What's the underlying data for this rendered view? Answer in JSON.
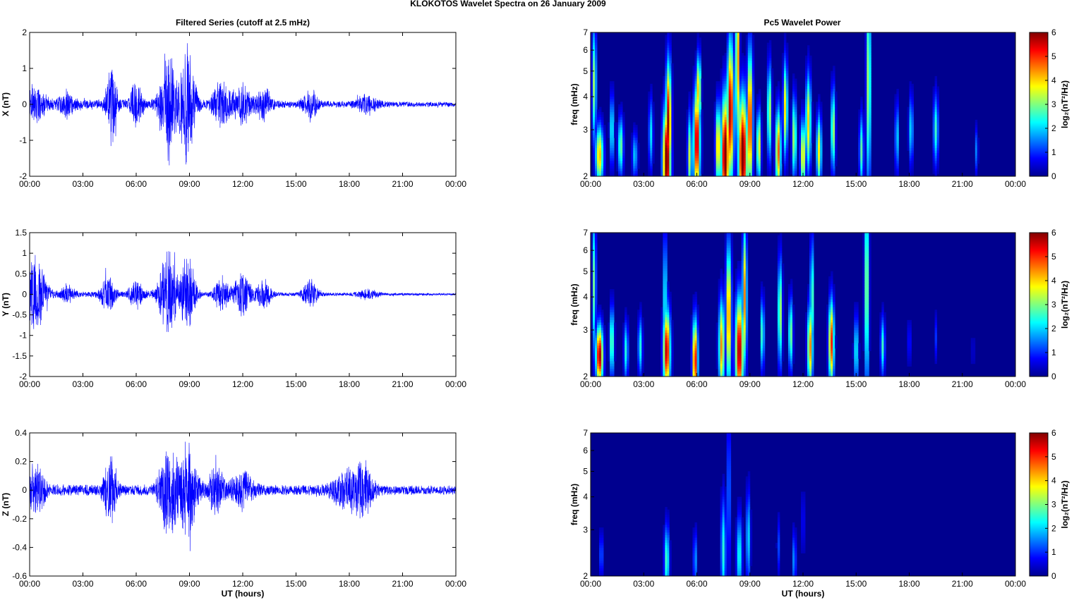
{
  "figure_title": "KLOKOTOS Wavelet Spectra on 26 January   2009",
  "left_title": "Filtered Series (cutoff at 2.5 mHz)",
  "right_title": "Pc5 Wavelet Power",
  "x_tick_labels": [
    "00:00",
    "03:00",
    "06:00",
    "09:00",
    "12:00",
    "15:00",
    "18:00",
    "21:00",
    "00:00"
  ],
  "x_axis_label": "UT (hours)",
  "colors": {
    "series_line": "#0000ff",
    "spectrum_background": "#00008f"
  },
  "chart_data": [
    {
      "type": "line",
      "title": "Filtered Series (cutoff at 2.5 mHz)",
      "ylabel": "X (nT)",
      "xlabel": "",
      "xlim": [
        0,
        24
      ],
      "ylim": [
        -2,
        2
      ],
      "y_ticks": [
        -2,
        -1,
        0,
        1,
        2
      ],
      "grid": false,
      "series": [
        {
          "noise_level": 0.13,
          "decay": 0.55,
          "bursts": [
            [
              0.3,
              0.6,
              0.35
            ],
            [
              2.1,
              0.4,
              0.25
            ],
            [
              4.6,
              0.3,
              0.9
            ],
            [
              6.0,
              0.3,
              0.55
            ],
            [
              7.8,
              0.45,
              1.4
            ],
            [
              8.9,
              0.4,
              1.5
            ],
            [
              10.8,
              0.5,
              0.55
            ],
            [
              12.0,
              0.5,
              0.45
            ],
            [
              13.2,
              0.4,
              0.4
            ],
            [
              15.8,
              0.4,
              0.35
            ],
            [
              19.0,
              0.6,
              0.2
            ]
          ]
        }
      ]
    },
    {
      "type": "line",
      "ylabel": "Y (nT)",
      "xlabel": "",
      "xlim": [
        0,
        24
      ],
      "ylim": [
        -2,
        1.5
      ],
      "y_ticks": [
        -2,
        -1.5,
        -1,
        -0.5,
        0,
        0.5,
        1,
        1.5
      ],
      "grid": false,
      "series": [
        {
          "noise_level": 0.06,
          "decay": 0.6,
          "bursts": [
            [
              0.3,
              0.6,
              0.8
            ],
            [
              2.1,
              0.4,
              0.18
            ],
            [
              4.4,
              0.4,
              0.4
            ],
            [
              6.0,
              0.4,
              0.3
            ],
            [
              7.8,
              0.5,
              0.9
            ],
            [
              8.9,
              0.4,
              0.95
            ],
            [
              10.8,
              0.4,
              0.35
            ],
            [
              12.0,
              0.5,
              0.45
            ],
            [
              13.2,
              0.4,
              0.3
            ],
            [
              15.8,
              0.4,
              0.3
            ],
            [
              19.0,
              0.6,
              0.1
            ]
          ]
        }
      ]
    },
    {
      "type": "line",
      "ylabel": "Z (nT)",
      "xlabel": "UT (hours)",
      "xlim": [
        0,
        24
      ],
      "ylim": [
        -0.6,
        0.4
      ],
      "y_ticks": [
        -0.6,
        -0.4,
        -0.2,
        0,
        0.2,
        0.4
      ],
      "grid": false,
      "series": [
        {
          "noise_level": 0.035,
          "decay": 0.2,
          "bursts": [
            [
              0.3,
              0.5,
              0.15
            ],
            [
              4.5,
              0.35,
              0.2
            ],
            [
              7.8,
              0.5,
              0.28
            ],
            [
              8.9,
              0.5,
              0.28
            ],
            [
              10.5,
              0.5,
              0.12
            ],
            [
              12.0,
              0.6,
              0.1
            ],
            [
              17.8,
              0.8,
              0.1
            ],
            [
              18.8,
              0.6,
              0.12
            ]
          ]
        }
      ]
    },
    {
      "type": "heatmap",
      "title": "Pc5 Wavelet Power",
      "ylabel": "freq (mHz)",
      "xlabel": "",
      "colorbar_label": "log₂(nT²/Hz)",
      "xlim": [
        0,
        24
      ],
      "ylim": [
        2,
        7
      ],
      "y_scale": "log",
      "y_ticks": [
        2,
        3,
        4,
        5,
        6,
        7
      ],
      "clim": [
        0,
        6
      ],
      "colorbar_ticks": [
        0,
        1,
        2,
        3,
        4,
        5,
        6
      ],
      "blobs": [
        [
          0.5,
          2.4,
          0.22,
          0.25,
          4.2
        ],
        [
          0.2,
          4.5,
          0.12,
          0.5,
          3.2
        ],
        [
          1.2,
          3.0,
          0.12,
          0.3,
          2.5
        ],
        [
          1.7,
          2.6,
          0.15,
          0.25,
          3.0
        ],
        [
          2.5,
          2.4,
          0.15,
          0.2,
          2.0
        ],
        [
          3.4,
          2.9,
          0.12,
          0.3,
          2.2
        ],
        [
          4.3,
          2.3,
          0.22,
          0.45,
          6.5
        ],
        [
          4.4,
          3.2,
          0.15,
          0.5,
          6.0
        ],
        [
          5.6,
          2.4,
          0.12,
          0.35,
          3.5
        ],
        [
          6.0,
          2.7,
          0.18,
          0.45,
          6.0
        ],
        [
          6.1,
          4.2,
          0.12,
          0.3,
          4.5
        ],
        [
          7.2,
          2.6,
          0.14,
          0.35,
          4.5
        ],
        [
          7.6,
          2.4,
          0.22,
          0.5,
          6.5
        ],
        [
          7.9,
          3.5,
          0.18,
          0.6,
          6.0
        ],
        [
          8.3,
          5.5,
          0.1,
          0.8,
          5.0
        ],
        [
          8.6,
          2.4,
          0.25,
          0.5,
          6.5
        ],
        [
          9.0,
          3.2,
          0.15,
          0.6,
          5.5
        ],
        [
          9.5,
          2.6,
          0.12,
          0.3,
          4.0
        ],
        [
          10.1,
          3.5,
          0.12,
          0.4,
          3.5
        ],
        [
          10.6,
          2.5,
          0.15,
          0.35,
          4.8
        ],
        [
          11.0,
          3.6,
          0.12,
          0.4,
          4.0
        ],
        [
          11.5,
          2.8,
          0.12,
          0.35,
          3.5
        ],
        [
          12.0,
          2.4,
          0.15,
          0.3,
          4.0
        ],
        [
          12.3,
          3.2,
          0.15,
          0.4,
          4.0
        ],
        [
          12.9,
          2.5,
          0.14,
          0.3,
          3.8
        ],
        [
          13.7,
          3.0,
          0.12,
          0.35,
          3.5
        ],
        [
          15.3,
          2.5,
          0.12,
          0.3,
          2.8
        ],
        [
          15.7,
          4.5,
          0.12,
          0.9,
          3.5
        ],
        [
          17.3,
          2.8,
          0.1,
          0.3,
          2.2
        ],
        [
          18.1,
          3.0,
          0.12,
          0.3,
          2.2
        ],
        [
          19.5,
          3.0,
          0.14,
          0.3,
          2.6
        ],
        [
          21.8,
          2.5,
          0.08,
          0.2,
          1.6
        ]
      ]
    },
    {
      "type": "heatmap",
      "ylabel": "freq (mHz)",
      "xlabel": "",
      "colorbar_label": "log₂(nT²/Hz)",
      "xlim": [
        0,
        24
      ],
      "ylim": [
        2,
        7
      ],
      "y_scale": "log",
      "y_ticks": [
        2,
        3,
        4,
        5,
        6,
        7
      ],
      "clim": [
        0,
        6
      ],
      "colorbar_ticks": [
        0,
        1,
        2,
        3,
        4,
        5,
        6
      ],
      "blobs": [
        [
          0.5,
          2.4,
          0.2,
          0.25,
          6.0
        ],
        [
          0.2,
          4.5,
          0.1,
          0.6,
          3.0
        ],
        [
          1.2,
          2.7,
          0.12,
          0.3,
          3.2
        ],
        [
          2.0,
          2.5,
          0.12,
          0.25,
          2.5
        ],
        [
          2.8,
          2.6,
          0.12,
          0.25,
          2.5
        ],
        [
          4.3,
          2.5,
          0.2,
          0.35,
          5.8
        ],
        [
          4.2,
          3.8,
          0.1,
          0.6,
          2.8
        ],
        [
          5.9,
          2.3,
          0.15,
          0.35,
          5.5
        ],
        [
          7.4,
          2.6,
          0.16,
          0.4,
          4.5
        ],
        [
          7.8,
          3.4,
          0.15,
          0.6,
          4.8
        ],
        [
          8.4,
          2.5,
          0.22,
          0.45,
          6.0
        ],
        [
          8.7,
          4.0,
          0.12,
          0.6,
          4.5
        ],
        [
          9.7,
          2.9,
          0.1,
          0.3,
          3.0
        ],
        [
          10.7,
          3.5,
          0.12,
          0.45,
          3.5
        ],
        [
          11.3,
          2.9,
          0.12,
          0.3,
          3.2
        ],
        [
          12.4,
          2.6,
          0.15,
          0.35,
          4.5
        ],
        [
          12.5,
          4.0,
          0.1,
          0.5,
          3.0
        ],
        [
          13.6,
          2.7,
          0.15,
          0.35,
          5.2
        ],
        [
          15.0,
          2.5,
          0.12,
          0.3,
          2.5
        ],
        [
          15.6,
          4.4,
          0.12,
          0.9,
          3.5
        ],
        [
          16.5,
          2.6,
          0.12,
          0.25,
          2.6
        ],
        [
          18.0,
          2.7,
          0.08,
          0.2,
          1.2
        ],
        [
          19.5,
          2.8,
          0.08,
          0.2,
          1.0
        ],
        [
          21.6,
          2.5,
          0.06,
          0.2,
          0.9
        ]
      ]
    },
    {
      "type": "heatmap",
      "ylabel": "freq (mHz)",
      "xlabel": "UT (hours)",
      "colorbar_label": "log₂(nT²/Hz)",
      "xlim": [
        0,
        24
      ],
      "ylim": [
        2,
        7
      ],
      "y_scale": "log",
      "y_ticks": [
        2,
        3,
        4,
        5,
        6,
        7
      ],
      "clim": [
        0,
        6
      ],
      "colorbar_ticks": [
        0,
        1,
        2,
        3,
        4,
        5,
        6
      ],
      "blobs": [
        [
          0.6,
          2.4,
          0.1,
          0.2,
          1.5
        ],
        [
          4.3,
          2.3,
          0.14,
          0.3,
          2.8
        ],
        [
          5.9,
          2.3,
          0.1,
          0.25,
          1.8
        ],
        [
          7.5,
          2.5,
          0.14,
          0.45,
          2.5
        ],
        [
          7.8,
          4.2,
          0.08,
          0.7,
          2.0
        ],
        [
          8.4,
          2.4,
          0.15,
          0.35,
          2.5
        ],
        [
          8.9,
          2.8,
          0.12,
          0.4,
          2.2
        ],
        [
          10.6,
          2.6,
          0.08,
          0.25,
          1.2
        ],
        [
          11.5,
          2.3,
          0.1,
          0.25,
          1.8
        ],
        [
          12.0,
          3.2,
          0.08,
          0.3,
          1.0
        ]
      ]
    }
  ]
}
